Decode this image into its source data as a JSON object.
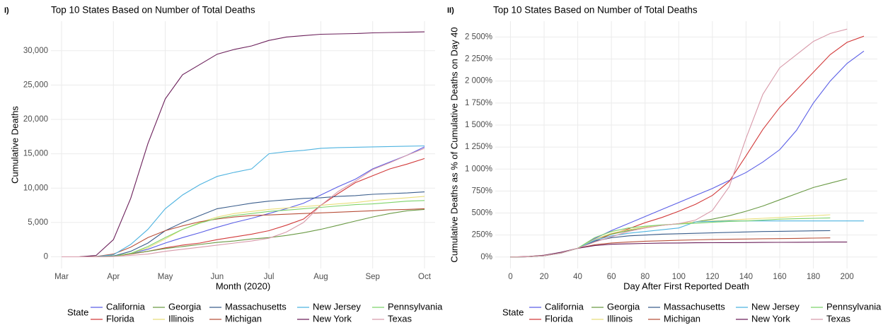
{
  "chart_data": [
    {
      "type": "line",
      "tag": "I)",
      "title": "Top 10 States Based on Number of Total Deaths",
      "x_label": "Month (2020)",
      "y_label": "Cumulative Deaths",
      "legend_title": "State",
      "legend_position": "bottom",
      "grid": true,
      "categories": [
        "Mar",
        null,
        null,
        "Apr",
        null,
        null,
        "May",
        null,
        null,
        "Jun",
        null,
        null,
        "Jul",
        null,
        null,
        "Aug",
        null,
        null,
        "Sep",
        null,
        null,
        "Oct"
      ],
      "ylim": [
        -1700,
        34300
      ],
      "yticks": [
        0,
        {
          "value": 5000,
          "label": "5,000"
        },
        {
          "value": 10000,
          "label": "10,000"
        },
        {
          "value": 15000,
          "label": "15,000"
        },
        {
          "value": 20000,
          "label": "20,000"
        },
        {
          "value": 25000,
          "label": "25,000"
        },
        {
          "value": 30000,
          "label": "30,000"
        }
      ],
      "series": [
        {
          "name": "California",
          "color": "#5a5ee6",
          "values": [
            0,
            0,
            20,
            100,
            500,
            1100,
            2000,
            2800,
            3500,
            4300,
            5000,
            5600,
            6300,
            7000,
            7800,
            9000,
            10200,
            11300,
            12800,
            13800,
            14800,
            16000
          ]
        },
        {
          "name": "Florida",
          "color": "#d23a3a",
          "values": [
            0,
            0,
            10,
            80,
            400,
            800,
            1300,
            1700,
            2000,
            2500,
            2900,
            3300,
            3800,
            4600,
            5500,
            7500,
            9200,
            10800,
            11800,
            12800,
            13500,
            14300
          ]
        },
        {
          "name": "Georgia",
          "color": "#6a9a45",
          "values": [
            0,
            0,
            20,
            150,
            450,
            800,
            1200,
            1500,
            1800,
            2100,
            2300,
            2600,
            2800,
            3100,
            3500,
            4000,
            4600,
            5200,
            5800,
            6300,
            6700,
            6900
          ]
        },
        {
          "name": "Illinois",
          "color": "#e8de7a",
          "values": [
            0,
            0,
            10,
            100,
            500,
            1300,
            2600,
            4000,
            5000,
            5800,
            6300,
            6600,
            6900,
            7100,
            7300,
            7500,
            7700,
            7900,
            8200,
            8400,
            8600,
            8800
          ]
        },
        {
          "name": "Massachusetts",
          "color": "#3b5e8c",
          "values": [
            0,
            0,
            10,
            100,
            800,
            2000,
            3800,
            5000,
            6000,
            7000,
            7400,
            7800,
            8100,
            8300,
            8500,
            8600,
            8800,
            8900,
            9100,
            9200,
            9300,
            9450
          ]
        },
        {
          "name": "Michigan",
          "color": "#b8503a",
          "values": [
            0,
            0,
            50,
            400,
            1400,
            2800,
            3800,
            4500,
            5100,
            5500,
            5800,
            6000,
            6100,
            6200,
            6300,
            6400,
            6500,
            6600,
            6700,
            6850,
            6900,
            7000
          ]
        },
        {
          "name": "New Jersey",
          "color": "#4eb3e0",
          "values": [
            0,
            0,
            20,
            300,
            1800,
            4000,
            7000,
            9000,
            10500,
            11700,
            12300,
            12800,
            15000,
            15300,
            15500,
            15800,
            15900,
            15950,
            16000,
            16050,
            16100,
            16150
          ]
        },
        {
          "name": "New York",
          "color": "#6b1f5a",
          "values": [
            0,
            0,
            200,
            2500,
            8500,
            16500,
            23000,
            26500,
            28000,
            29500,
            30200,
            30700,
            31500,
            32000,
            32200,
            32400,
            32450,
            32500,
            32600,
            32650,
            32700,
            32750
          ]
        },
        {
          "name": "Pennsylvania",
          "color": "#7ed36a",
          "values": [
            0,
            0,
            10,
            60,
            500,
            1500,
            2800,
            4000,
            4900,
            5600,
            6000,
            6300,
            6600,
            6800,
            7000,
            7200,
            7400,
            7600,
            7700,
            7900,
            8100,
            8200
          ]
        },
        {
          "name": "Texas",
          "color": "#d89aaa",
          "values": [
            0,
            0,
            10,
            50,
            200,
            400,
            800,
            1100,
            1400,
            1700,
            2000,
            2300,
            2700,
            3600,
            5000,
            7500,
            9500,
            11000,
            12700,
            13700,
            14800,
            15800
          ]
        }
      ]
    },
    {
      "type": "line",
      "tag": "II)",
      "title": "Top 10 States Based on Number of Total Deaths",
      "x_label": "Day After First Reported Death",
      "y_label": "Cumulative Deaths as % of Cumulative Deaths on Day 40",
      "legend_title": "State",
      "legend_position": "bottom",
      "grid": true,
      "x": [
        0,
        10,
        20,
        30,
        40,
        50,
        60,
        70,
        80,
        90,
        100,
        110,
        120,
        130,
        140,
        150,
        160,
        170,
        180,
        190,
        200,
        210
      ],
      "xlim": [
        -9,
        218
      ],
      "xticks": [
        0,
        20,
        40,
        60,
        80,
        100,
        120,
        140,
        160,
        180,
        200
      ],
      "ylim": [
        -130,
        2680
      ],
      "yticks": [
        {
          "value": 0,
          "label": "0%"
        },
        {
          "value": 250,
          "label": "250%"
        },
        {
          "value": 500,
          "label": "500%"
        },
        {
          "value": 750,
          "label": "750%"
        },
        {
          "value": 1000,
          "label": "1 000%"
        },
        {
          "value": 1250,
          "label": "1 250%"
        },
        {
          "value": 1500,
          "label": "1 500%"
        },
        {
          "value": 1750,
          "label": "1 750%"
        },
        {
          "value": 2000,
          "label": "2 000%"
        },
        {
          "value": 2250,
          "label": "2 250%"
        },
        {
          "value": 2500,
          "label": "2 500%"
        }
      ],
      "series": [
        {
          "name": "California",
          "color": "#5a5ee6",
          "values": [
            0,
            3,
            15,
            45,
            100,
            210,
            300,
            380,
            460,
            540,
            620,
            700,
            780,
            870,
            960,
            1080,
            1220,
            1440,
            1750,
            2000,
            2200,
            2340
          ]
        },
        {
          "name": "Florida",
          "color": "#d23a3a",
          "values": [
            0,
            3,
            15,
            45,
            100,
            180,
            260,
            320,
            390,
            450,
            520,
            600,
            700,
            860,
            1150,
            1450,
            1700,
            1900,
            2100,
            2300,
            2440,
            2510
          ]
        },
        {
          "name": "Georgia",
          "color": "#6a9a45",
          "values": [
            0,
            3,
            15,
            45,
            100,
            200,
            260,
            300,
            340,
            360,
            380,
            400,
            430,
            470,
            520,
            580,
            650,
            720,
            790,
            840,
            890,
            null
          ]
        },
        {
          "name": "Illinois",
          "color": "#e8de7a",
          "values": [
            0,
            3,
            15,
            45,
            100,
            200,
            270,
            310,
            340,
            360,
            380,
            400,
            410,
            420,
            430,
            440,
            450,
            460,
            470,
            480,
            null,
            null
          ]
        },
        {
          "name": "Massachusetts",
          "color": "#3b5e8c",
          "values": [
            0,
            3,
            15,
            45,
            100,
            180,
            220,
            240,
            250,
            260,
            265,
            270,
            275,
            280,
            285,
            290,
            292,
            295,
            298,
            300,
            null,
            null
          ]
        },
        {
          "name": "Michigan",
          "color": "#b8503a",
          "values": [
            0,
            5,
            20,
            50,
            100,
            140,
            160,
            170,
            180,
            185,
            190,
            195,
            200,
            202,
            205,
            208,
            210,
            212,
            215,
            218,
            null,
            null
          ]
        },
        {
          "name": "New Jersey",
          "color": "#4eb3e0",
          "values": [
            0,
            3,
            15,
            45,
            100,
            190,
            240,
            270,
            290,
            310,
            330,
            400,
            405,
            410,
            410,
            410,
            410,
            410,
            410,
            410,
            410,
            410
          ]
        },
        {
          "name": "New York",
          "color": "#6b1f5a",
          "values": [
            0,
            5,
            20,
            55,
            100,
            130,
            145,
            150,
            155,
            158,
            160,
            162,
            163,
            164,
            165,
            166,
            167,
            168,
            169,
            170,
            170,
            null
          ]
        },
        {
          "name": "Pennsylvania",
          "color": "#7ed36a",
          "values": [
            0,
            3,
            15,
            45,
            100,
            220,
            290,
            330,
            350,
            365,
            375,
            385,
            395,
            405,
            410,
            420,
            430,
            435,
            440,
            445,
            null,
            null
          ]
        },
        {
          "name": "Texas",
          "color": "#d89aaa",
          "values": [
            0,
            3,
            15,
            45,
            100,
            170,
            230,
            290,
            330,
            360,
            380,
            420,
            530,
            800,
            1350,
            1850,
            2150,
            2300,
            2450,
            2540,
            2590,
            null
          ]
        }
      ]
    }
  ]
}
